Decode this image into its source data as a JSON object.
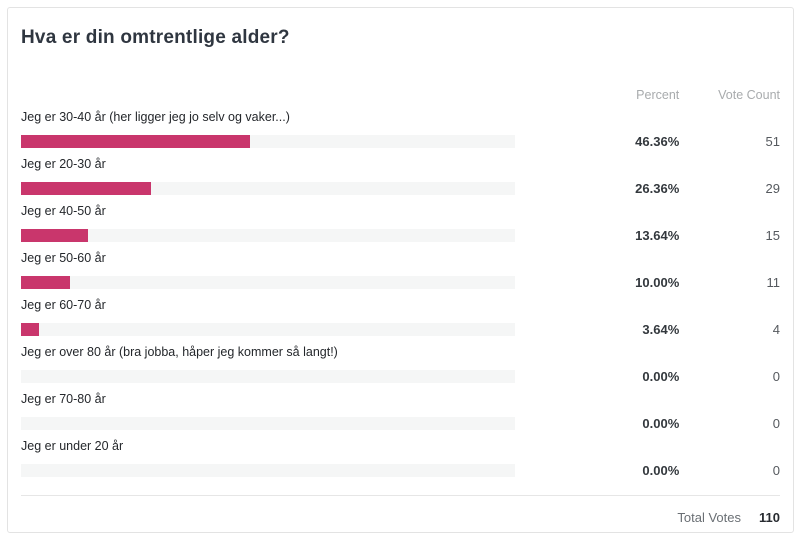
{
  "poll": {
    "title": "Hva er din omtrentlige alder?",
    "columns": {
      "percent": "Percent",
      "vote_count": "Vote Count"
    },
    "rows": [
      {
        "label": "Jeg er 30-40 år (her ligger jeg jo selv og vaker...)",
        "percent_label": "46.36%",
        "percent_value": 46.36,
        "votes": "51"
      },
      {
        "label": "Jeg er 20-30 år",
        "percent_label": "26.36%",
        "percent_value": 26.36,
        "votes": "29"
      },
      {
        "label": "Jeg er 40-50 år",
        "percent_label": "13.64%",
        "percent_value": 13.64,
        "votes": "15"
      },
      {
        "label": "Jeg er 50-60 år",
        "percent_label": "10.00%",
        "percent_value": 10.0,
        "votes": "11"
      },
      {
        "label": "Jeg er 60-70 år",
        "percent_label": "3.64%",
        "percent_value": 3.64,
        "votes": "4"
      },
      {
        "label": "Jeg er over 80 år (bra jobba, håper jeg kommer så langt!)",
        "percent_label": "0.00%",
        "percent_value": 0,
        "votes": "0"
      },
      {
        "label": "Jeg er 70-80 år",
        "percent_label": "0.00%",
        "percent_value": 0,
        "votes": "0"
      },
      {
        "label": "Jeg er under 20 år",
        "percent_label": "0.00%",
        "percent_value": 0,
        "votes": "0"
      }
    ],
    "footer": {
      "label": "Total Votes",
      "value": "110"
    },
    "colors": {
      "bar_fill": "#c9366c",
      "bar_track": "#f5f6f6"
    }
  },
  "chart_data": {
    "type": "bar",
    "orientation": "horizontal",
    "title": "Hva er din omtrentlige alder?",
    "categories": [
      "Jeg er 30-40 år (her ligger jeg jo selv og vaker...)",
      "Jeg er 20-30 år",
      "Jeg er 40-50 år",
      "Jeg er 50-60 år",
      "Jeg er 60-70 år",
      "Jeg er over 80 år (bra jobba, håper jeg kommer så langt!)",
      "Jeg er 70-80 år",
      "Jeg er under 20 år"
    ],
    "series": [
      {
        "name": "Percent",
        "values": [
          46.36,
          26.36,
          13.64,
          10.0,
          3.64,
          0.0,
          0.0,
          0.0
        ]
      },
      {
        "name": "Vote Count",
        "values": [
          51,
          29,
          15,
          11,
          4,
          0,
          0,
          0
        ]
      }
    ],
    "total_votes": 110,
    "xlim": [
      0,
      100
    ],
    "grid": false,
    "legend": false,
    "bar_color": "#c9366c"
  }
}
